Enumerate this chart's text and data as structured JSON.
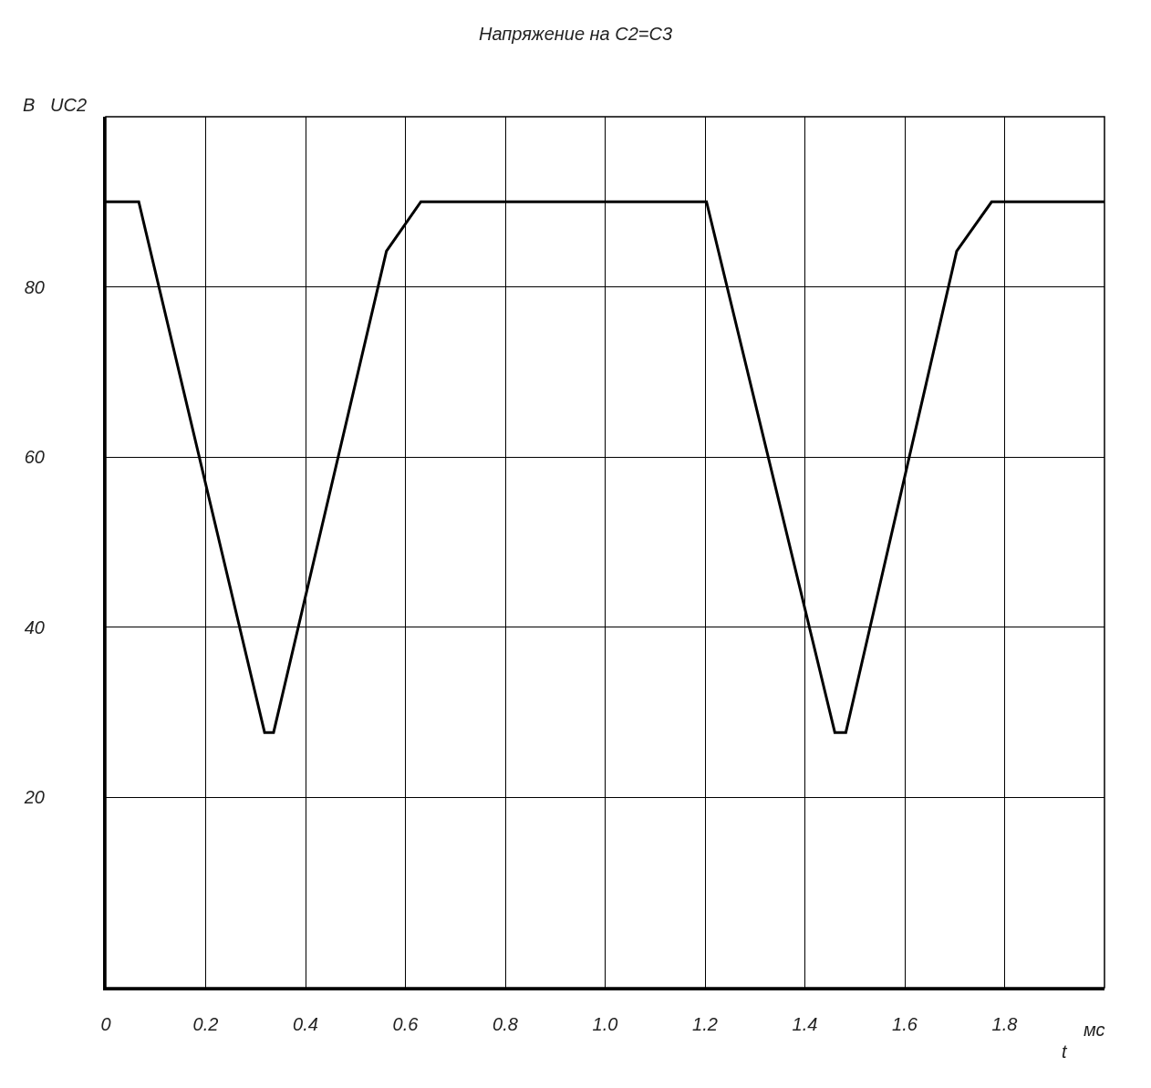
{
  "chart_data": {
    "type": "line",
    "title": "Напряжение на С2=С3",
    "xlabel": "мс",
    "ylabel": "В   UC2",
    "annotations": [
      "t"
    ],
    "x": [
      0,
      0.066,
      0.318,
      0.336,
      0.562,
      0.631,
      1.203,
      1.46,
      1.482,
      1.704,
      1.774,
      2.0
    ],
    "series": [
      {
        "color": "#000000",
        "values": [
          90,
          90,
          27.6,
          27.6,
          84.2,
          90,
          90,
          27.6,
          27.6,
          84.2,
          90,
          90
        ]
      }
    ],
    "xlim": [
      0,
      2.0
    ],
    "ylim": [
      -2.4,
      100
    ],
    "xticks": [
      0,
      0.2,
      0.4,
      0.6,
      0.8,
      {
        "value": 1.0,
        "label": "1.0"
      },
      1.2,
      1.4,
      1.6,
      1.8
    ],
    "yticks": [
      20,
      40,
      60,
      80
    ],
    "grid": true,
    "marker": "none",
    "line_style": "solid"
  }
}
